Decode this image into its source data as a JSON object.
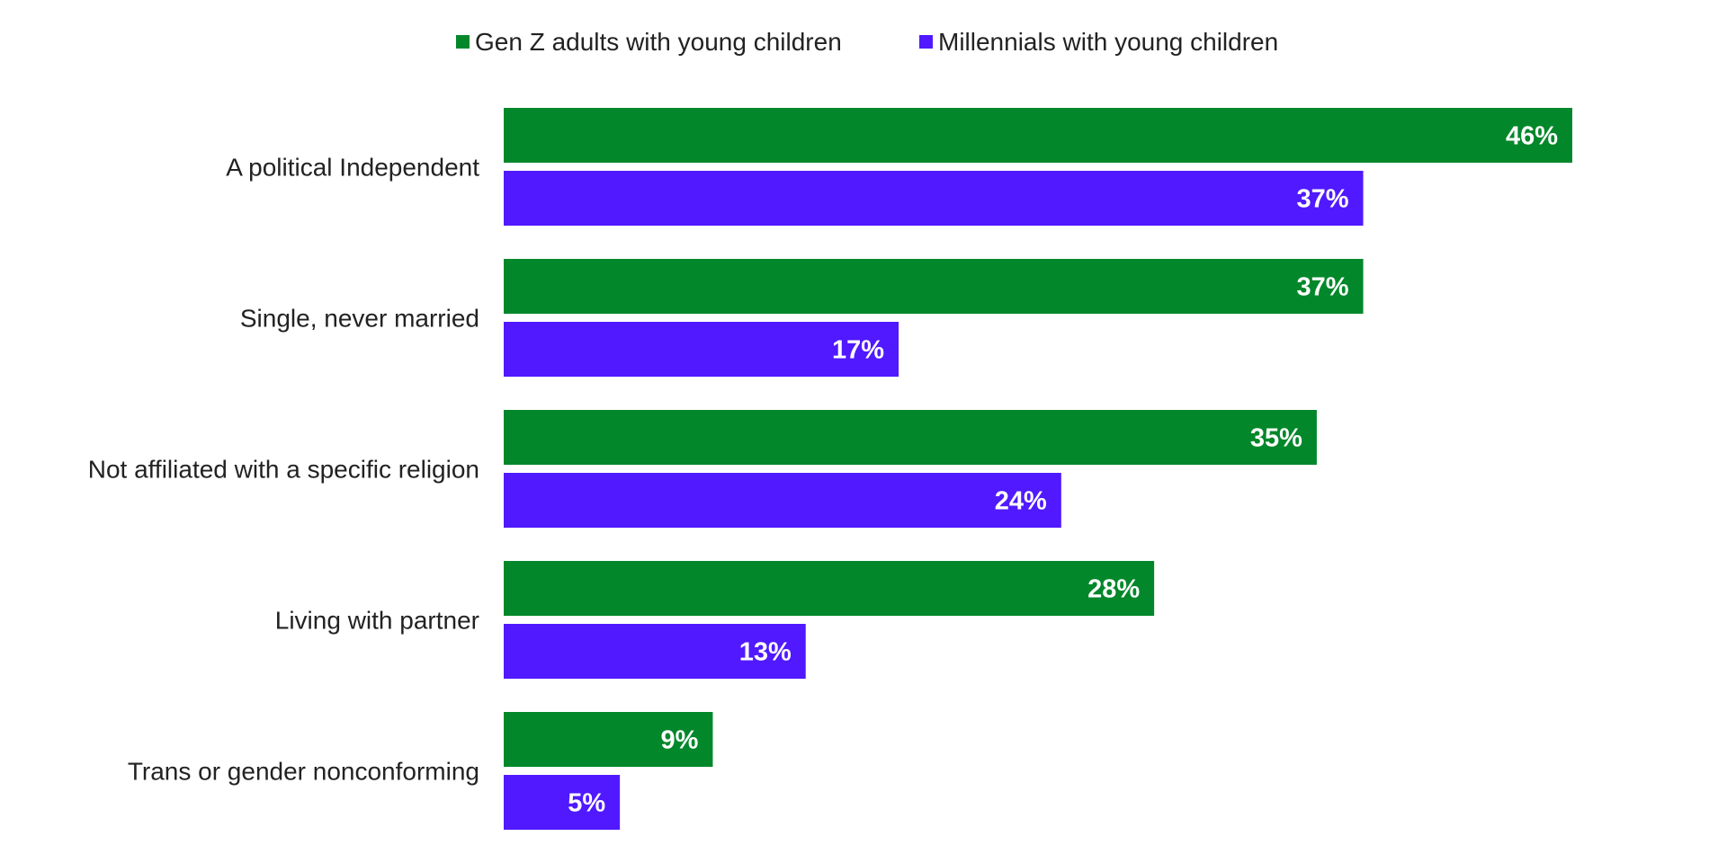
{
  "chart_data": {
    "type": "bar",
    "orientation": "horizontal",
    "title": "",
    "xlabel": "",
    "ylabel": "",
    "xlim": [
      0,
      46
    ],
    "grid": false,
    "legend_position": "top",
    "value_suffix": "%",
    "categories": [
      "A political Independent",
      "Single, never married",
      "Not affiliated with a specific religion",
      "Living with partner",
      "Trans or gender nonconforming"
    ],
    "series": [
      {
        "name": "Gen Z adults with young children",
        "color": "#02872a",
        "values": [
          46,
          37,
          35,
          28,
          9
        ],
        "labels": [
          "46%",
          "37%",
          "35%",
          "28%",
          "9%"
        ]
      },
      {
        "name": "Millennials with young children",
        "color": "#5019ff",
        "values": [
          37,
          17,
          24,
          13,
          5
        ],
        "labels": [
          "37%",
          "17%",
          "24%",
          "13%",
          "5%"
        ]
      }
    ]
  }
}
